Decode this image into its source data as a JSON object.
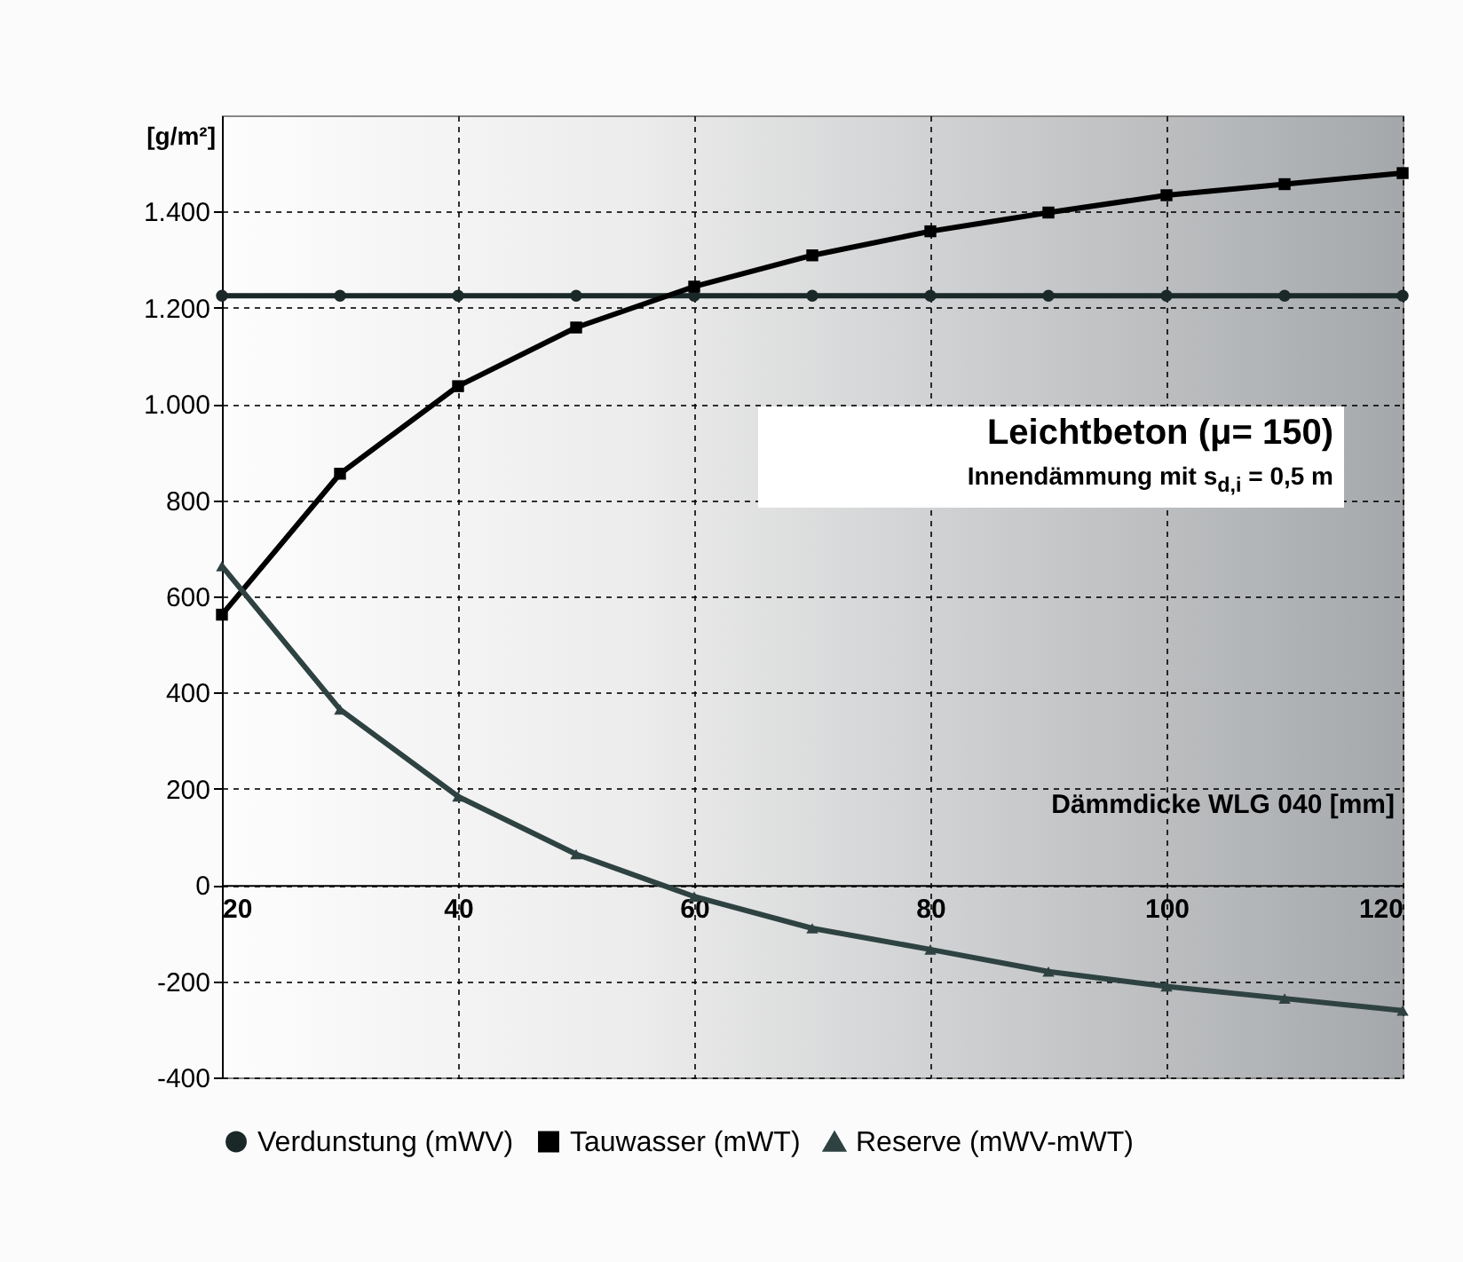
{
  "chart_data": {
    "type": "line",
    "xlabel": "Dämmdicke WLG 040 [mm]",
    "ylabel": "[g/m²]",
    "annotations": [
      "Leichtbeton (μ= 150)",
      "Innendämmung mit s$_{d,i}$ = 0,5 m"
    ],
    "x": [
      20,
      30,
      40,
      50,
      60,
      70,
      80,
      90,
      100,
      110,
      120
    ],
    "series": [
      {
        "name": "Verdunstung (mWV)",
        "color": "#1a2828",
        "marker": "circle",
        "values": [
          1225,
          1225,
          1225,
          1225,
          1225,
          1225,
          1225,
          1225,
          1225,
          1225,
          1225
        ]
      },
      {
        "name": "Tauwasser (mWT)",
        "color": "#000000",
        "marker": "square",
        "values": [
          562,
          855,
          1037,
          1159,
          1244,
          1309,
          1359,
          1398,
          1434,
          1457,
          1480
        ]
      },
      {
        "name": "Reserve (mWV-mWT)",
        "color": "#2f4242",
        "marker": "triangle",
        "values": [
          663,
          365,
          184,
          64,
          -24,
          -90,
          -134,
          -180,
          -211,
          -236,
          -261
        ]
      }
    ],
    "xlim": [
      20,
      120
    ],
    "xticks": [
      20,
      40,
      60,
      80,
      100,
      120
    ],
    "ylim": [
      -400,
      1600
    ],
    "yticks": [
      {
        "value": -400,
        "label": "-400"
      },
      {
        "value": -200,
        "label": "-200"
      },
      {
        "value": 0,
        "label": "0"
      },
      {
        "value": 200,
        "label": "200"
      },
      {
        "value": 400,
        "label": "400"
      },
      {
        "value": 600,
        "label": "600"
      },
      {
        "value": 800,
        "label": "800"
      },
      {
        "value": 1000,
        "label": "1.000"
      },
      {
        "value": 1200,
        "label": "1.200"
      },
      {
        "value": 1400,
        "label": "1.400"
      }
    ],
    "grid": true,
    "legend": "bottom",
    "line_style": "solid"
  }
}
